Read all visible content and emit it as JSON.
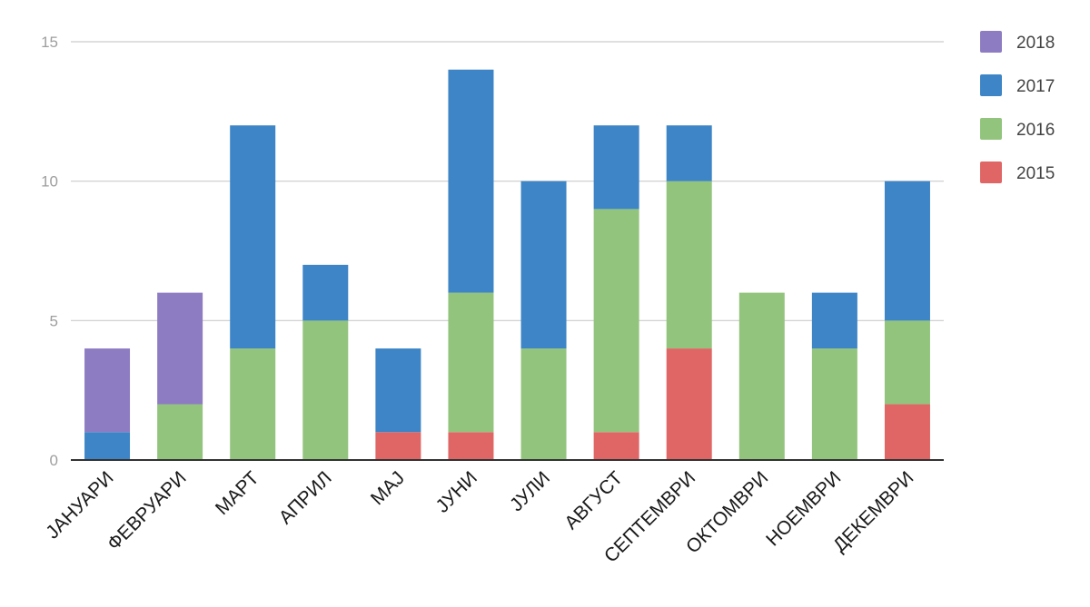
{
  "chart_data": {
    "type": "bar",
    "stacked": true,
    "categories": [
      "ЈАНУАРИ",
      "ФЕВРУАРИ",
      "МАРТ",
      "АПРИЛ",
      "МАЈ",
      "ЈУНИ",
      "ЈУЛИ",
      "АВГУСТ",
      "СЕПТЕМВРИ",
      "ОКТОМВРИ",
      "НОЕМВРИ",
      "ДЕКЕМВРИ"
    ],
    "series": [
      {
        "name": "2015",
        "color": "#e06666",
        "values": [
          0,
          0,
          0,
          0,
          1,
          1,
          0,
          1,
          4,
          0,
          0,
          2
        ]
      },
      {
        "name": "2016",
        "color": "#93c47d",
        "values": [
          0,
          2,
          4,
          5,
          0,
          5,
          4,
          8,
          6,
          6,
          4,
          3
        ]
      },
      {
        "name": "2017",
        "color": "#3d85c6",
        "values": [
          1,
          0,
          8,
          2,
          3,
          8,
          6,
          3,
          2,
          0,
          2,
          5
        ]
      },
      {
        "name": "2018",
        "color": "#8e7cc3",
        "values": [
          3,
          4,
          0,
          0,
          0,
          0,
          0,
          0,
          0,
          0,
          0,
          0
        ]
      }
    ],
    "legend_order": [
      "2018",
      "2017",
      "2016",
      "2015"
    ],
    "yticks": [
      "0",
      "5",
      "10",
      "15"
    ],
    "ylim": [
      0,
      15
    ],
    "title": "",
    "xlabel": "",
    "ylabel": "",
    "grid": true,
    "legend_position": "right"
  }
}
